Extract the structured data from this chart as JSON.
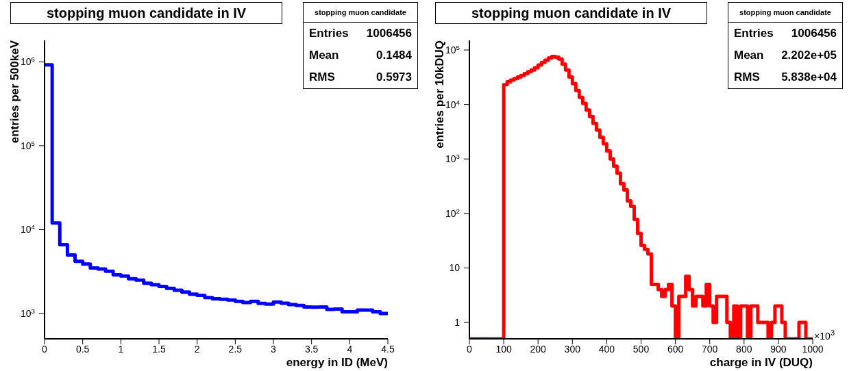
{
  "chart_data": [
    {
      "type": "histogram",
      "title": "stopping muon candidate in IV",
      "xlabel": "energy in ID (MeV)",
      "ylabel": "entries per 500keV",
      "color": "#0000ff",
      "log": true,
      "bins": [
        0,
        0.1,
        0.2,
        0.3,
        0.4,
        0.5,
        0.6,
        0.7,
        0.8,
        0.9,
        1,
        1.1,
        1.2,
        1.3,
        1.4,
        1.5,
        1.6,
        1.7,
        1.8,
        1.9,
        2,
        2.1,
        2.2,
        2.3,
        2.4,
        2.5,
        2.6,
        2.7,
        2.8,
        2.9,
        3,
        3.1,
        3.2,
        3.3,
        3.4,
        3.5,
        3.6,
        3.7,
        3.8,
        3.9,
        4,
        4.1,
        4.2,
        4.3,
        4.4,
        4.5
      ],
      "values": [
        920000,
        12000,
        6600,
        5000,
        4200,
        3900,
        3500,
        3400,
        3200,
        2900,
        2800,
        2600,
        2500,
        2300,
        2200,
        2100,
        2000,
        1900,
        1800,
        1700,
        1650,
        1550,
        1500,
        1480,
        1450,
        1400,
        1350,
        1400,
        1320,
        1300,
        1370,
        1330,
        1280,
        1250,
        1200,
        1190,
        1200,
        1120,
        1130,
        1050,
        1050,
        1100,
        1100,
        1050,
        1000
      ],
      "xlim": [
        0,
        4.5
      ],
      "xticks": [
        0,
        0.5,
        1,
        1.5,
        2,
        2.5,
        3,
        3.5,
        4,
        4.5
      ],
      "ylim": [
        500,
        1800000
      ],
      "yticks": [
        {
          "value": 1000,
          "label": "10$^{3}$"
        },
        {
          "value": 10000,
          "label": "10$^{4}$"
        },
        {
          "value": 100000,
          "label": "10$^{5}$"
        },
        {
          "value": 1000000,
          "label": "10$^{6}$"
        }
      ],
      "annotations": [
        "stopping muon candidate",
        "Entries",
        "1006456",
        "Mean",
        "0.1484",
        "RMS",
        "0.5973"
      ]
    },
    {
      "type": "histogram",
      "title": "stopping muon candidate in IV",
      "xlabel": "charge in IV (DUQ)",
      "ylabel": "entries per 10kDUQ",
      "color": "#ff0000",
      "log": true,
      "bins": [
        0,
        10,
        20,
        30,
        40,
        50,
        60,
        70,
        80,
        90,
        100,
        110,
        120,
        130,
        140,
        150,
        160,
        170,
        180,
        190,
        200,
        210,
        220,
        230,
        240,
        250,
        260,
        270,
        280,
        290,
        300,
        310,
        320,
        330,
        340,
        350,
        360,
        370,
        380,
        390,
        400,
        410,
        420,
        430,
        440,
        450,
        460,
        470,
        480,
        490,
        500,
        510,
        520,
        530,
        540,
        550,
        560,
        570,
        580,
        590,
        600,
        610,
        620,
        630,
        640,
        650,
        660,
        670,
        680,
        690,
        700,
        710,
        720,
        730,
        740,
        750,
        760,
        770,
        780,
        790,
        800,
        810,
        820,
        830,
        840,
        850,
        860,
        870,
        880,
        890,
        900,
        910,
        920,
        930,
        940,
        950,
        960,
        970,
        980,
        990,
        1000
      ],
      "values": [
        null,
        null,
        null,
        null,
        null,
        null,
        null,
        null,
        null,
        null,
        23000,
        26000,
        28000,
        30000,
        32000,
        34000,
        37000,
        40000,
        43000,
        47000,
        53000,
        59000,
        65000,
        71000,
        76000,
        74000,
        68000,
        55000,
        43000,
        32000,
        24000,
        18000,
        13500,
        10500,
        7900,
        6000,
        4500,
        3400,
        2500,
        1900,
        1400,
        1000,
        740,
        550,
        350,
        270,
        170,
        135,
        78,
        43,
        26,
        22,
        18,
        5,
        5,
        4,
        3,
        4,
        5,
        2,
        null,
        3,
        3,
        7,
        4,
        2,
        3,
        3,
        2,
        5,
        2,
        1,
        3,
        3,
        3,
        1,
        null,
        2,
        null,
        2,
        2,
        null,
        2,
        2,
        1,
        1,
        1,
        null,
        1,
        2,
        2,
        1,
        null,
        null,
        null,
        null,
        1,
        1,
        null,
        null
      ],
      "xlim": [
        0,
        1000
      ],
      "xticks": [
        0,
        100,
        200,
        300,
        400,
        500,
        600,
        700,
        800,
        900,
        1000
      ],
      "ylim": [
        0.5,
        150000
      ],
      "yticks": [
        1,
        10,
        {
          "value": 100,
          "label": "10$^{2}$"
        },
        {
          "value": 1000,
          "label": "10$^{3}$"
        },
        {
          "value": 10000,
          "label": "10$^{4}$"
        },
        {
          "value": 100000,
          "label": "10$^{5}$"
        }
      ],
      "annotations": [
        "stopping muon candidate",
        "Entries",
        "1006456",
        "Mean",
        "2.202e+05",
        "RMS",
        "5.838e+04",
        "×10$^{3}$"
      ]
    }
  ]
}
